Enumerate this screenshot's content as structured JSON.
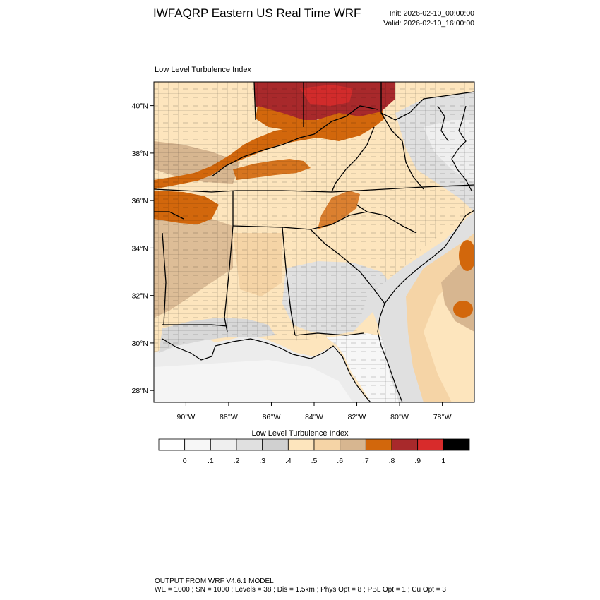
{
  "header": {
    "title": "IWFAQRP Eastern US Real Time WRF",
    "init": "Init: 2026-02-10_00:00:00",
    "valid": "Valid: 2026-02-10_16:00:00"
  },
  "map": {
    "variable_label": "Low Level Turbulence Index",
    "lat_labels": [
      "28°N",
      "30°N",
      "32°N",
      "34°N",
      "36°N",
      "38°N",
      "40°N"
    ],
    "lon_labels": [
      "90°W",
      "88°W",
      "86°W",
      "84°W",
      "82°W",
      "80°W",
      "78°W"
    ],
    "lat_range": [
      27.5,
      41.0
    ],
    "lon_range": [
      -91.5,
      -76.5
    ]
  },
  "colorbar": {
    "label": "Low Level Turbulence Index",
    "tick_labels": [
      "0",
      ".1",
      ".2",
      ".3",
      ".4",
      ".5",
      ".6",
      ".7",
      ".8",
      ".9",
      "1"
    ],
    "colors": [
      "#ffffff",
      "#f7f7f7",
      "#efefef",
      "#e0e0e0",
      "#d0d0d0",
      "#fde5bd",
      "#f5d4a6",
      "#d7b690",
      "#d2670c",
      "#a8292b",
      "#d82b2b",
      "#000000"
    ]
  },
  "footer": {
    "line1": "OUTPUT FROM WRF V4.6.1 MODEL",
    "line2": "WE = 1000 ; SN = 1000 ; Levels = 38 ; Dis = 1.5km ; Phys Opt = 8 ; PBL Opt = 1 ; Cu Opt = 3"
  }
}
